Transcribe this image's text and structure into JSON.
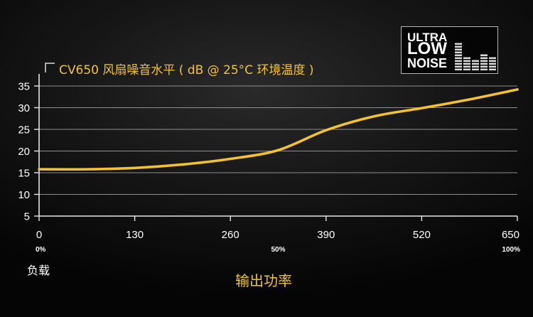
{
  "logo": {
    "line1": "ULTRA",
    "line2": "LOW",
    "line3": "NOISE",
    "icon": "sound-level-bars-icon"
  },
  "colors": {
    "accent": "#f2c232",
    "text": "#ffffff",
    "grid": "#8e8e8e"
  },
  "chart_data": {
    "type": "line",
    "title": "CV650 风扇噪音水平 ( dB @ 25°C 环境温度 )",
    "xlabel": "输出功率",
    "ylabel": "",
    "xlim": [
      0,
      650
    ],
    "ylim": [
      5,
      35
    ],
    "x_ticks": [
      0,
      130,
      260,
      390,
      520,
      650
    ],
    "x_tick_labels": [
      "0",
      "130",
      "260",
      "390",
      "520",
      "650"
    ],
    "y_ticks": [
      5,
      10,
      15,
      20,
      25,
      30,
      35
    ],
    "y_tick_labels": [
      "5",
      "10",
      "15",
      "20",
      "25",
      "30",
      "35"
    ],
    "load_axis": {
      "label": "负载",
      "ticks": [
        0,
        325,
        650
      ],
      "tick_labels": [
        "0%",
        "50%",
        "100%"
      ]
    },
    "grid": true,
    "legend": "none",
    "series": [
      {
        "color": "#f2c232",
        "x": [
          0,
          65,
          130,
          195,
          260,
          325,
          390,
          455,
          520,
          585,
          650
        ],
        "values": [
          15.8,
          15.8,
          16.1,
          16.9,
          18.2,
          20.2,
          24.8,
          28.0,
          29.9,
          31.9,
          34.2
        ]
      }
    ]
  }
}
